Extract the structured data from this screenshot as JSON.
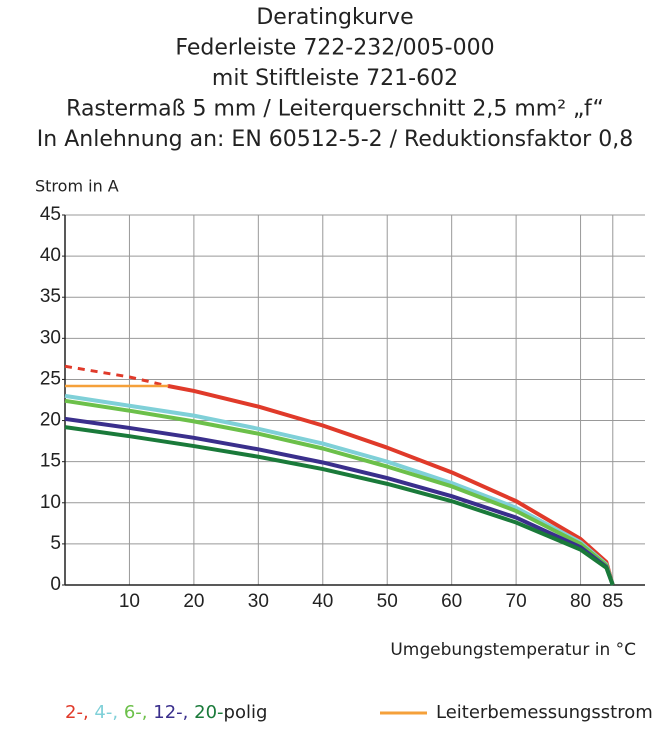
{
  "chart_data": {
    "type": "line",
    "title": [
      "Deratingkurve",
      "Federleiste 722-232/005-000",
      "mit Stiftleiste 721-602",
      "Rastermaß 5 mm / Leiterquerschnitt 2,5 mm² „f“",
      "In Anlehnung an: EN 60512-5-2 / Reduktionsfaktor 0,8"
    ],
    "ylabel": "Strom in A",
    "xlabel": "Umgebungstemperatur in °C",
    "xlim": [
      0,
      90
    ],
    "xticks": [
      10,
      20,
      30,
      40,
      50,
      60,
      70,
      80,
      85
    ],
    "ylim": [
      0,
      45
    ],
    "yticks": [
      0,
      5,
      10,
      15,
      20,
      25,
      30,
      35,
      40,
      45
    ],
    "grid": true,
    "legend_separator": ",",
    "legend_suffix": "polig",
    "series": [
      {
        "name": "2-",
        "color": "#e03a2a",
        "x": [
          16,
          20,
          30,
          40,
          50,
          60,
          70,
          80,
          84,
          85
        ],
        "values": [
          24.2,
          23.6,
          21.7,
          19.4,
          16.7,
          13.7,
          10.2,
          5.6,
          2.8,
          0
        ]
      },
      {
        "color": "#e03a2a",
        "dashed": true,
        "x": [
          0,
          10,
          16
        ],
        "values": [
          26.6,
          25.3,
          24.2
        ]
      },
      {
        "name": "4-",
        "color": "#7fd0d8",
        "x": [
          0,
          10,
          20,
          30,
          40,
          50,
          60,
          70,
          80,
          84,
          85
        ],
        "values": [
          23,
          21.8,
          20.6,
          19,
          17.2,
          15,
          12.4,
          9.4,
          5.2,
          2.5,
          0
        ]
      },
      {
        "name": "6-",
        "color": "#6cc04a",
        "x": [
          0,
          10,
          20,
          30,
          40,
          50,
          60,
          70,
          80,
          84,
          85
        ],
        "values": [
          22.4,
          21.2,
          19.9,
          18.4,
          16.6,
          14.4,
          12,
          9,
          5,
          2.4,
          0
        ]
      },
      {
        "name": "12-",
        "color": "#3a2f8c",
        "x": [
          0,
          10,
          20,
          30,
          40,
          50,
          60,
          70,
          80,
          84,
          85
        ],
        "values": [
          20.2,
          19.1,
          17.9,
          16.5,
          14.9,
          13,
          10.8,
          8.2,
          4.6,
          2.2,
          0
        ]
      },
      {
        "name": "20-",
        "color": "#1a7a3a",
        "x": [
          0,
          10,
          20,
          30,
          40,
          50,
          60,
          70,
          80,
          84,
          85
        ],
        "values": [
          19.2,
          18.1,
          16.9,
          15.6,
          14.1,
          12.3,
          10.2,
          7.6,
          4.3,
          2.1,
          0
        ]
      },
      {
        "name": "Leiterbemessungsstrom",
        "color": "#f5a03a",
        "x": [
          0,
          16
        ],
        "values": [
          24.2,
          24.2
        ]
      }
    ]
  }
}
